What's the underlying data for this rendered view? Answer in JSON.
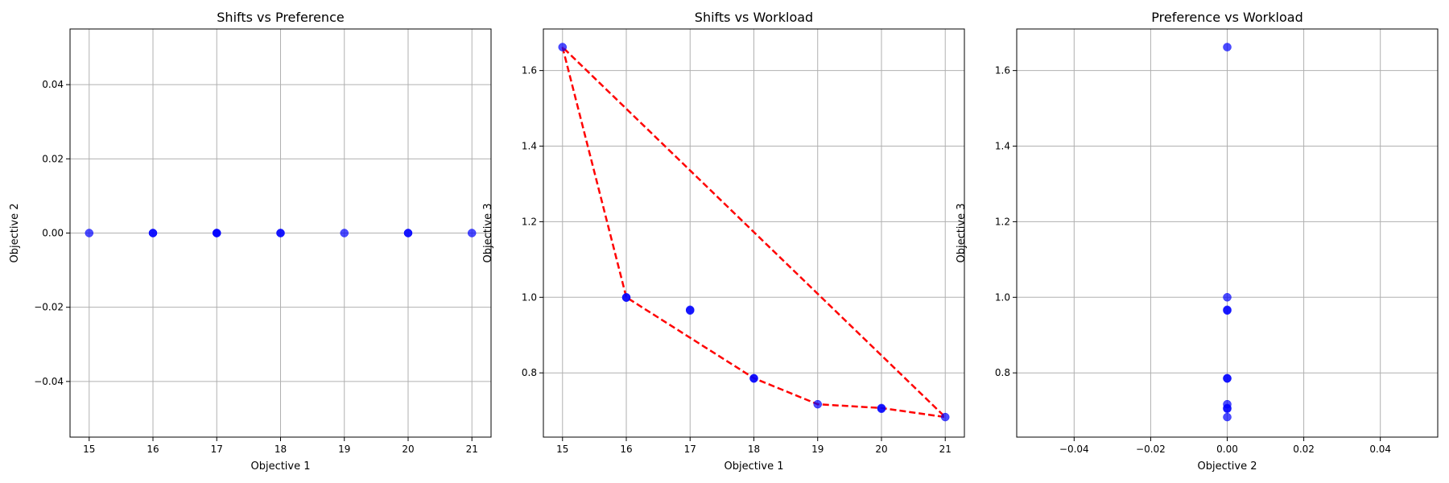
{
  "chart_data": [
    {
      "type": "scatter",
      "title": "Shifts vs Preference",
      "xlabel": "Objective 1",
      "ylabel": "Objective 2",
      "xlim": [
        14.7,
        21.3
      ],
      "ylim": [
        -0.055,
        0.055
      ],
      "xticks": [
        15,
        16,
        17,
        18,
        19,
        20,
        21
      ],
      "xtick_labels": [
        "15",
        "16",
        "17",
        "18",
        "19",
        "20",
        "21"
      ],
      "yticks": [
        -0.04,
        -0.02,
        0.0,
        0.02,
        0.04
      ],
      "ytick_labels": [
        "−0.04",
        "−0.02",
        "0.00",
        "0.02",
        "0.04"
      ],
      "grid": true,
      "series": [
        {
          "color": "#0000ff",
          "x": [
            15,
            16,
            16,
            17,
            17,
            17,
            18,
            18,
            19,
            20,
            20,
            21
          ],
          "y": [
            0,
            0,
            0,
            0,
            0,
            0,
            0,
            0,
            0,
            0,
            0,
            0
          ]
        }
      ]
    },
    {
      "type": "scatter",
      "title": "Shifts vs Workload",
      "xlabel": "Objective 1",
      "ylabel": "Objective 3",
      "xlim": [
        14.7,
        21.3
      ],
      "ylim": [
        0.63,
        1.71
      ],
      "xticks": [
        15,
        16,
        17,
        18,
        19,
        20,
        21
      ],
      "xtick_labels": [
        "15",
        "16",
        "17",
        "18",
        "19",
        "20",
        "21"
      ],
      "yticks": [
        0.8,
        1.0,
        1.2,
        1.4,
        1.6
      ],
      "ytick_labels": [
        "0.8",
        "1.0",
        "1.2",
        "1.4",
        "1.6"
      ],
      "grid": true,
      "series": [
        {
          "color": "#0000ff",
          "x": [
            15,
            16,
            16,
            17,
            17,
            18,
            18,
            19,
            20,
            20,
            21
          ],
          "y": [
            1.662,
            1.0,
            0.999,
            0.967,
            0.965,
            0.786,
            0.785,
            0.717,
            0.707,
            0.705,
            0.683
          ]
        }
      ],
      "hull": {
        "color": "#ff0000",
        "style": "dashed",
        "x": [
          15,
          16,
          18,
          19,
          20,
          21,
          15
        ],
        "y": [
          1.662,
          1.0,
          0.786,
          0.717,
          0.707,
          0.683,
          1.662
        ]
      }
    },
    {
      "type": "scatter",
      "title": "Preference vs Workload",
      "xlabel": "Objective 2",
      "ylabel": "Objective 3",
      "xlim": [
        -0.055,
        0.055
      ],
      "ylim": [
        0.63,
        1.71
      ],
      "xticks": [
        -0.04,
        -0.02,
        0.0,
        0.02,
        0.04
      ],
      "xtick_labels": [
        "−0.04",
        "−0.02",
        "0.00",
        "0.02",
        "0.04"
      ],
      "yticks": [
        0.8,
        1.0,
        1.2,
        1.4,
        1.6
      ],
      "ytick_labels": [
        "0.8",
        "1.0",
        "1.2",
        "1.4",
        "1.6"
      ],
      "grid": true,
      "series": [
        {
          "color": "#0000ff",
          "x": [
            0,
            0,
            0,
            0,
            0,
            0,
            0,
            0,
            0,
            0
          ],
          "y": [
            1.662,
            1.0,
            0.967,
            0.965,
            0.786,
            0.785,
            0.717,
            0.707,
            0.705,
            0.683
          ]
        }
      ]
    }
  ]
}
